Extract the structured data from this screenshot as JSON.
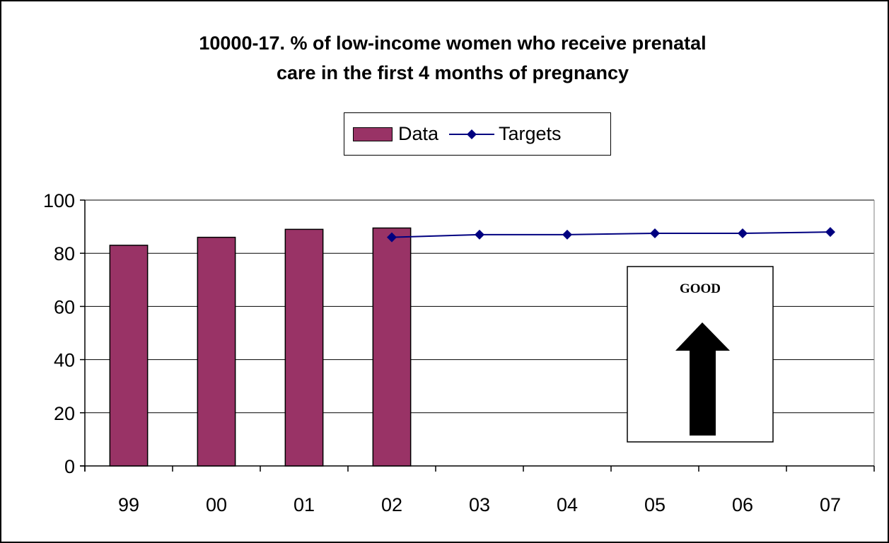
{
  "chart_data": {
    "type": "bar",
    "title_lines": [
      "10000-17. % of low-income women who receive prenatal",
      "care in the first 4 months of pregnancy"
    ],
    "categories": [
      "99",
      "00",
      "01",
      "02",
      "03",
      "04",
      "05",
      "06",
      "07"
    ],
    "series": [
      {
        "name": "Data",
        "type": "bar",
        "color": "#993366",
        "values": [
          83,
          86,
          89,
          89.5,
          null,
          null,
          null,
          null,
          null
        ]
      },
      {
        "name": "Targets",
        "type": "line",
        "color": "#000080",
        "marker": "diamond",
        "values": [
          null,
          null,
          null,
          86,
          87,
          87,
          87.5,
          87.5,
          88
        ]
      }
    ],
    "ylim": [
      0,
      100
    ],
    "yticks": [
      0,
      20,
      40,
      60,
      80,
      100
    ],
    "grid": true,
    "legend_position": "top-center",
    "annotation": {
      "text": "GOOD",
      "icon": "up-arrow-icon"
    }
  }
}
